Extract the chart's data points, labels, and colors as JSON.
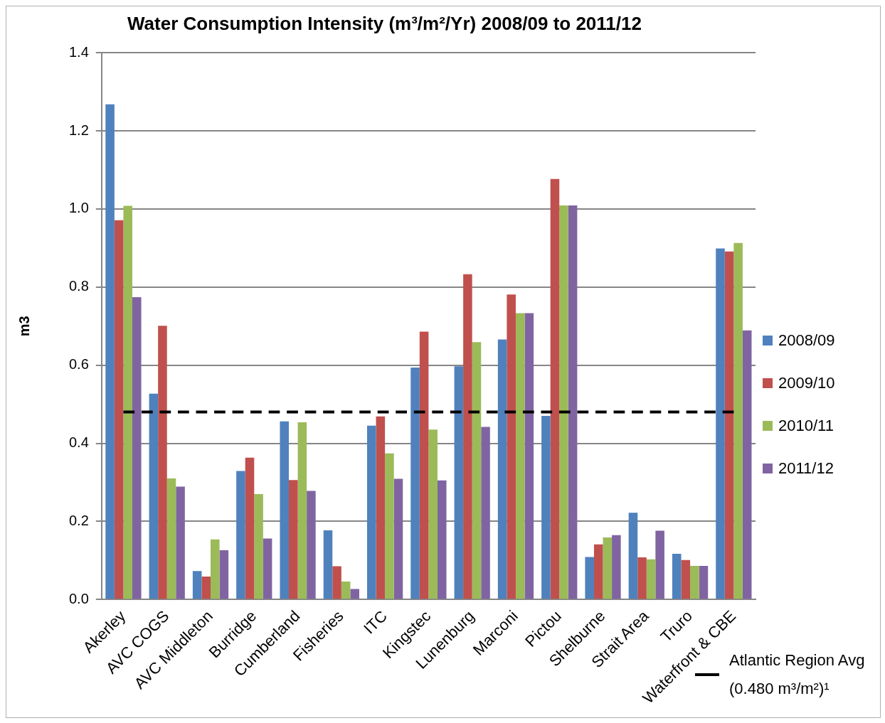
{
  "chart_data": {
    "type": "bar",
    "title": "Water Consumption Intensity (m³/m²/Yr) 2008/09 to 2011/12",
    "ylabel": "m3",
    "categories": [
      "Akerley",
      "AVC COGS",
      "AVC Middleton",
      "Burridge",
      "Cumberland",
      "Fisheries",
      "ITC",
      "Kingstec",
      "Lunenburg",
      "Marconi",
      "Pictou",
      "Shelburne",
      "Strait Area",
      "Truro",
      "Waterfront & CBE"
    ],
    "series": [
      {
        "name": "2008/09",
        "color": "#4f81bd",
        "values": [
          1.268,
          0.527,
          0.073,
          0.329,
          0.456,
          0.177,
          0.445,
          0.594,
          0.597,
          0.666,
          0.47,
          0.109,
          0.222,
          0.117,
          0.899
        ]
      },
      {
        "name": "2009/10",
        "color": "#c0504d",
        "values": [
          0.971,
          0.701,
          0.059,
          0.363,
          0.306,
          0.085,
          0.469,
          0.686,
          0.833,
          0.781,
          1.077,
          0.141,
          0.108,
          0.101,
          0.891
        ]
      },
      {
        "name": "2010/11",
        "color": "#9bbb59",
        "values": [
          1.008,
          0.31,
          0.154,
          0.27,
          0.454,
          0.046,
          0.374,
          0.435,
          0.659,
          0.733,
          1.009,
          0.159,
          0.103,
          0.086,
          0.913
        ]
      },
      {
        "name": "2011/12",
        "color": "#8064a2",
        "values": [
          0.774,
          0.289,
          0.126,
          0.156,
          0.278,
          0.027,
          0.309,
          0.305,
          0.442,
          0.733,
          1.009,
          0.165,
          0.176,
          0.086,
          0.689
        ]
      },
      {
        "name": "Atlantic Region Avg (0.480 m³/m²)¹",
        "type": "line",
        "line_style": "dashed",
        "color": "#000000",
        "values": [
          0.48,
          0.48,
          0.48,
          0.48,
          0.48,
          0.48,
          0.48,
          0.48,
          0.48,
          0.48,
          0.48,
          0.48,
          0.48,
          0.48,
          0.48
        ]
      }
    ],
    "ylim": [
      0,
      1.4
    ],
    "yticks": [
      {
        "value": 0,
        "label": "0.0"
      },
      0.2,
      0.4,
      0.6,
      0.8,
      {
        "value": 1,
        "label": "1.0"
      },
      1.2,
      1.4
    ],
    "grid": "y",
    "legend": "right",
    "marker": "none"
  }
}
